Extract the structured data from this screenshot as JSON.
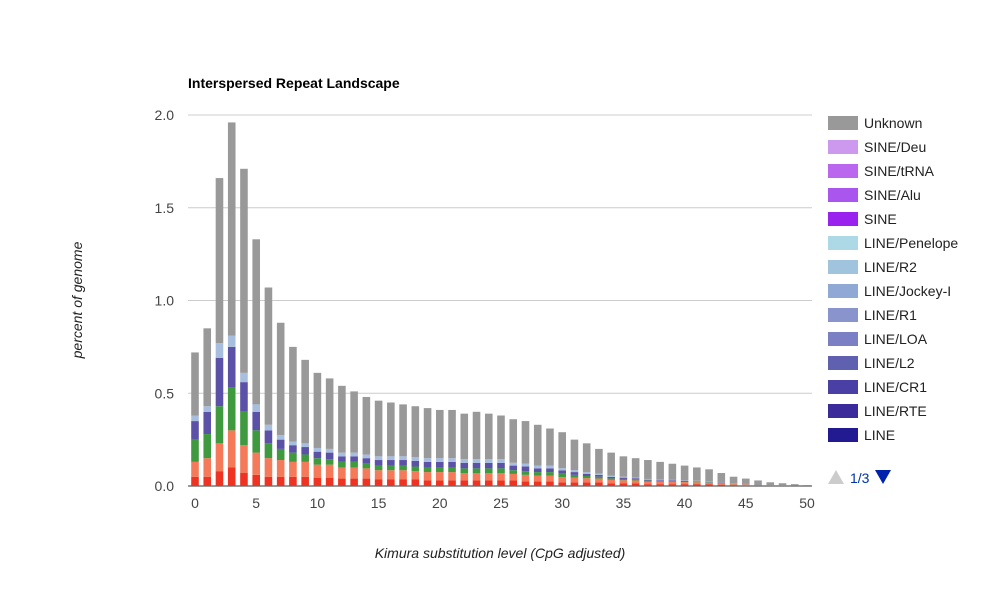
{
  "chart_data": {
    "type": "bar",
    "stacked": true,
    "title": "Interspersed Repeat Landscape",
    "xlabel": "Kimura substitution level (CpG adjusted)",
    "ylabel": "percent of genome",
    "xlim": [
      0,
      50
    ],
    "ylim": [
      0,
      2.0
    ],
    "x_ticks": [
      "0",
      "5",
      "10",
      "15",
      "20",
      "25",
      "30",
      "35",
      "40",
      "45",
      "50"
    ],
    "y_ticks": [
      "0.0",
      "0.5",
      "1.0",
      "1.5",
      "2.0"
    ],
    "grid": true,
    "legend_position": "right",
    "x": [
      0,
      1,
      2,
      3,
      4,
      5,
      6,
      7,
      8,
      9,
      10,
      11,
      12,
      13,
      14,
      15,
      16,
      17,
      18,
      19,
      20,
      21,
      22,
      23,
      24,
      25,
      26,
      27,
      28,
      29,
      30,
      31,
      32,
      33,
      34,
      35,
      36,
      37,
      38,
      39,
      40,
      41,
      42,
      43,
      44,
      45,
      46,
      47,
      48,
      49,
      50
    ],
    "totals": [
      0.72,
      0.85,
      1.66,
      1.96,
      1.71,
      1.33,
      1.07,
      0.88,
      0.75,
      0.68,
      0.61,
      0.58,
      0.54,
      0.51,
      0.48,
      0.46,
      0.45,
      0.44,
      0.43,
      0.42,
      0.41,
      0.41,
      0.39,
      0.4,
      0.39,
      0.38,
      0.36,
      0.35,
      0.33,
      0.31,
      0.29,
      0.25,
      0.23,
      0.2,
      0.18,
      0.16,
      0.15,
      0.14,
      0.13,
      0.12,
      0.11,
      0.1,
      0.09,
      0.07,
      0.05,
      0.04,
      0.03,
      0.02,
      0.015,
      0.01,
      0.005
    ],
    "series": [
      {
        "name": "Unknown",
        "color": "#999999"
      },
      {
        "name": "SINE/Deu",
        "color": "#cc99ee"
      },
      {
        "name": "SINE/tRNA",
        "color": "#bb66ee"
      },
      {
        "name": "SINE/Alu",
        "color": "#aa55ee"
      },
      {
        "name": "SINE",
        "color": "#9922ee"
      },
      {
        "name": "LINE/Penelope",
        "color": "#add8e6"
      },
      {
        "name": "LINE/R2",
        "color": "#a0c4dd"
      },
      {
        "name": "LINE/Jockey-I",
        "color": "#90a8d4"
      },
      {
        "name": "LINE/R1",
        "color": "#8a94cc"
      },
      {
        "name": "LINE/LOA",
        "color": "#7b80c4"
      },
      {
        "name": "LINE/L2",
        "color": "#6060b0"
      },
      {
        "name": "LINE/CR1",
        "color": "#4a3fa4"
      },
      {
        "name": "LINE/RTE",
        "color": "#3a2a9a"
      },
      {
        "name": "LINE",
        "color": "#221a90"
      }
    ],
    "layers": {
      "red": [
        0.05,
        0.05,
        0.08,
        0.1,
        0.07,
        0.06,
        0.05,
        0.05,
        0.05,
        0.05,
        0.045,
        0.045,
        0.04,
        0.04,
        0.04,
        0.035,
        0.035,
        0.035,
        0.035,
        0.03,
        0.03,
        0.03,
        0.03,
        0.03,
        0.03,
        0.03,
        0.03,
        0.025,
        0.025,
        0.025,
        0.02,
        0.02,
        0.02,
        0.02,
        0.015,
        0.015,
        0.015,
        0.01,
        0.01,
        0.01,
        0.01,
        0.01,
        0.008,
        0.007,
        0.005,
        0.004,
        0.003,
        0.002,
        0.002,
        0.001,
        0.001
      ],
      "coral": [
        0.08,
        0.1,
        0.15,
        0.2,
        0.15,
        0.12,
        0.1,
        0.09,
        0.08,
        0.08,
        0.07,
        0.07,
        0.06,
        0.06,
        0.055,
        0.05,
        0.05,
        0.05,
        0.045,
        0.045,
        0.045,
        0.045,
        0.04,
        0.04,
        0.04,
        0.04,
        0.035,
        0.035,
        0.03,
        0.03,
        0.028,
        0.025,
        0.022,
        0.02,
        0.018,
        0.016,
        0.015,
        0.014,
        0.013,
        0.012,
        0.011,
        0.01,
        0.009,
        0.007,
        0.005,
        0.004,
        0.003,
        0.002,
        0.002,
        0.001,
        0.001
      ],
      "green": [
        0.12,
        0.13,
        0.2,
        0.23,
        0.18,
        0.12,
        0.08,
        0.06,
        0.05,
        0.04,
        0.035,
        0.03,
        0.03,
        0.03,
        0.025,
        0.025,
        0.025,
        0.025,
        0.025,
        0.025,
        0.025,
        0.025,
        0.025,
        0.025,
        0.025,
        0.025,
        0.02,
        0.02,
        0.02,
        0.02,
        0.018,
        0.015,
        0.012,
        0.01,
        0.008,
        0.007,
        0.006,
        0.005,
        0.004,
        0.004,
        0.003,
        0.003,
        0.002,
        0.002,
        0.001,
        0.001,
        0.001,
        0.0,
        0.0,
        0.0,
        0.0
      ],
      "purple": [
        0.1,
        0.12,
        0.26,
        0.22,
        0.16,
        0.1,
        0.07,
        0.05,
        0.04,
        0.04,
        0.035,
        0.035,
        0.03,
        0.03,
        0.03,
        0.03,
        0.03,
        0.03,
        0.03,
        0.03,
        0.03,
        0.03,
        0.03,
        0.03,
        0.03,
        0.03,
        0.025,
        0.025,
        0.02,
        0.02,
        0.018,
        0.015,
        0.012,
        0.01,
        0.008,
        0.007,
        0.006,
        0.005,
        0.004,
        0.004,
        0.003,
        0.003,
        0.002,
        0.002,
        0.001,
        0.001,
        0.001,
        0.0,
        0.0,
        0.0,
        0.0
      ],
      "light": [
        0.03,
        0.03,
        0.08,
        0.06,
        0.05,
        0.04,
        0.03,
        0.025,
        0.02,
        0.02,
        0.02,
        0.02,
        0.02,
        0.02,
        0.02,
        0.02,
        0.02,
        0.02,
        0.02,
        0.02,
        0.02,
        0.02,
        0.02,
        0.02,
        0.02,
        0.02,
        0.015,
        0.015,
        0.015,
        0.015,
        0.012,
        0.01,
        0.008,
        0.007,
        0.006,
        0.005,
        0.004,
        0.004,
        0.003,
        0.003,
        0.003,
        0.002,
        0.002,
        0.001,
        0.001,
        0.001,
        0.0,
        0.0,
        0.0,
        0.0,
        0.0
      ]
    }
  },
  "pager": {
    "label": "1/3"
  }
}
